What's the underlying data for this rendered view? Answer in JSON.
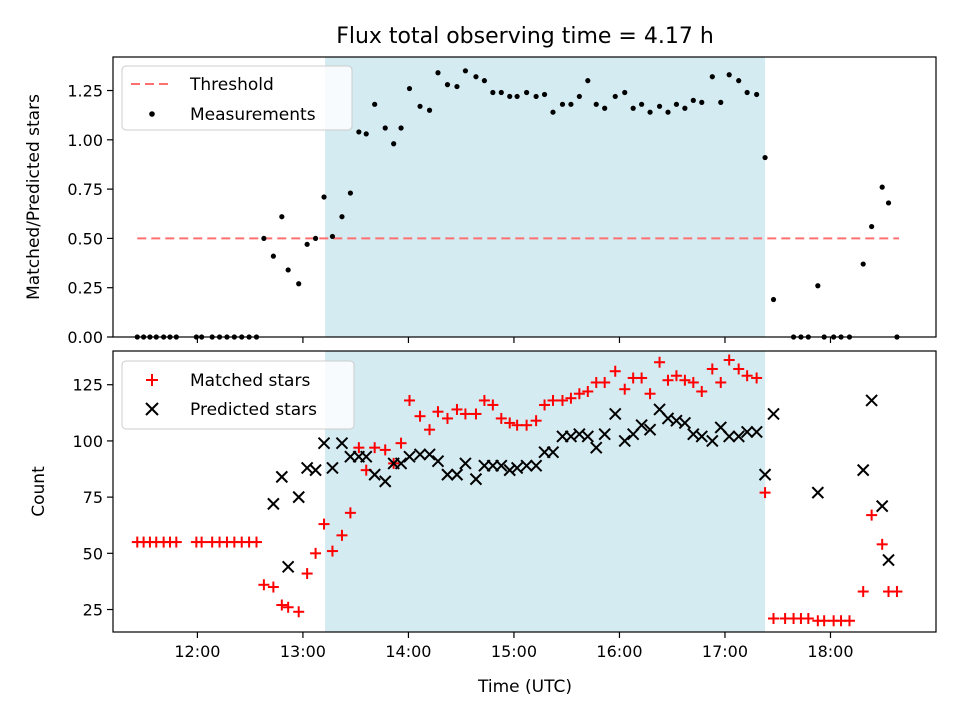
{
  "chart_data": [
    {
      "type": "scatter",
      "title": "Flux total observing time = 4.17 h",
      "xlabel": "",
      "ylabel": "Matched/Predicted stars",
      "xlim": [
        11.2,
        19.0
      ],
      "ylim": [
        0.0,
        1.42
      ],
      "yticks": [
        0.0,
        0.25,
        0.5,
        0.75,
        1.0,
        1.25
      ],
      "ytick_labels": [
        "0.00",
        "0.25",
        "0.50",
        "0.75",
        "1.00",
        "1.25"
      ],
      "xticks": [
        12,
        13,
        14,
        15,
        16,
        17,
        18
      ],
      "show_xtick_labels": false,
      "shaded_interval": {
        "x_start": 13.21,
        "x_end": 17.38,
        "color": "#add8e6"
      },
      "legend_position": "upper left",
      "series": [
        {
          "name": "Threshold",
          "style": "dashed-line",
          "color": "#ff7070",
          "x": [
            11.43,
            18.65
          ],
          "y": [
            0.5,
            0.5
          ]
        },
        {
          "name": "Measurements",
          "style": "dot",
          "color": "#000000",
          "x": [
            11.43,
            11.49,
            11.55,
            11.61,
            11.68,
            11.74,
            11.8,
            11.99,
            12.04,
            12.14,
            12.21,
            12.28,
            12.35,
            12.42,
            12.49,
            12.56,
            12.63,
            12.72,
            12.8,
            12.86,
            12.96,
            13.04,
            13.12,
            13.2,
            13.28,
            13.37,
            13.45,
            13.53,
            13.6,
            13.68,
            13.78,
            13.86,
            13.93,
            14.01,
            14.11,
            14.2,
            14.28,
            14.37,
            14.46,
            14.54,
            14.64,
            14.72,
            14.8,
            14.88,
            14.96,
            15.03,
            15.12,
            15.21,
            15.29,
            15.37,
            15.46,
            15.54,
            15.62,
            15.7,
            15.78,
            15.86,
            15.96,
            16.05,
            16.13,
            16.21,
            16.29,
            16.38,
            16.46,
            16.54,
            16.62,
            16.7,
            16.78,
            16.88,
            16.96,
            17.04,
            17.13,
            17.21,
            17.3,
            17.38,
            17.46,
            17.65,
            17.72,
            17.79,
            17.88,
            17.94,
            18.03,
            18.1,
            18.18,
            18.31,
            18.39,
            18.49,
            18.55,
            18.63
          ],
          "y": [
            0,
            0,
            0,
            0,
            0,
            0,
            0,
            0,
            0,
            0,
            0,
            0,
            0,
            0,
            0,
            0,
            0.5,
            0.41,
            0.61,
            0.34,
            0.27,
            0.47,
            0.5,
            0.71,
            0.51,
            0.61,
            0.73,
            1.04,
            1.03,
            1.18,
            1.06,
            0.98,
            1.06,
            1.26,
            1.17,
            1.15,
            1.34,
            1.28,
            1.27,
            1.35,
            1.32,
            1.3,
            1.24,
            1.24,
            1.22,
            1.22,
            1.24,
            1.22,
            1.23,
            1.14,
            1.18,
            1.18,
            1.22,
            1.3,
            1.18,
            1.16,
            1.22,
            1.24,
            1.16,
            1.18,
            1.14,
            1.17,
            1.14,
            1.18,
            1.16,
            1.2,
            1.19,
            1.32,
            1.19,
            1.33,
            1.3,
            1.24,
            1.23,
            0.91,
            0.19,
            0,
            0,
            0,
            0.26,
            0,
            0,
            0,
            0,
            0.37,
            0.56,
            0.76,
            0.68,
            0
          ]
        }
      ]
    },
    {
      "type": "scatter",
      "title": "",
      "xlabel": "Time (UTC)",
      "ylabel": "Count",
      "xlim": [
        11.2,
        19.0
      ],
      "ylim": [
        15,
        140
      ],
      "yticks": [
        25,
        50,
        75,
        100,
        125
      ],
      "ytick_labels": [
        "25",
        "50",
        "75",
        "100",
        "125"
      ],
      "xticks": [
        12,
        13,
        14,
        15,
        16,
        17,
        18
      ],
      "xtick_labels": [
        "12:00",
        "13:00",
        "14:00",
        "15:00",
        "16:00",
        "17:00",
        "18:00"
      ],
      "show_xtick_labels": true,
      "shaded_interval": {
        "x_start": 13.21,
        "x_end": 17.38,
        "color": "#add8e6"
      },
      "legend_position": "upper left",
      "series": [
        {
          "name": "Matched stars",
          "marker": "plus",
          "color": "#ff0000",
          "x": [
            11.43,
            11.49,
            11.55,
            11.61,
            11.68,
            11.74,
            11.8,
            11.99,
            12.04,
            12.14,
            12.21,
            12.28,
            12.35,
            12.42,
            12.49,
            12.56,
            12.63,
            12.72,
            12.8,
            12.86,
            12.96,
            13.04,
            13.12,
            13.2,
            13.28,
            13.37,
            13.45,
            13.53,
            13.6,
            13.68,
            13.78,
            13.86,
            13.93,
            14.01,
            14.11,
            14.2,
            14.28,
            14.37,
            14.46,
            14.54,
            14.64,
            14.72,
            14.8,
            14.88,
            14.96,
            15.03,
            15.12,
            15.21,
            15.29,
            15.37,
            15.46,
            15.54,
            15.62,
            15.7,
            15.78,
            15.86,
            15.96,
            16.05,
            16.13,
            16.21,
            16.29,
            16.38,
            16.46,
            16.54,
            16.62,
            16.7,
            16.78,
            16.88,
            16.96,
            17.04,
            17.13,
            17.21,
            17.3,
            17.38,
            17.46,
            17.57,
            17.65,
            17.72,
            17.79,
            17.88,
            17.94,
            18.03,
            18.1,
            18.18,
            18.31,
            18.39,
            18.49,
            18.55,
            18.63
          ],
          "y": [
            55,
            55,
            55,
            55,
            55,
            55,
            55,
            55,
            55,
            55,
            55,
            55,
            55,
            55,
            55,
            55,
            36,
            35,
            27,
            26,
            24,
            41,
            50,
            63,
            51,
            58,
            68,
            97,
            87,
            97,
            96,
            90,
            99,
            118,
            111,
            105,
            113,
            110,
            114,
            112,
            112,
            118,
            116,
            110,
            108,
            107,
            107,
            109,
            116,
            118,
            118,
            119,
            121,
            122,
            126,
            126,
            131,
            123,
            128,
            128,
            121,
            135,
            127,
            129,
            127,
            126,
            122,
            132,
            126,
            136,
            132,
            129,
            128,
            77,
            21,
            21,
            21,
            21,
            21,
            20,
            20,
            20,
            20,
            20,
            33,
            67,
            54,
            33,
            33
          ]
        },
        {
          "name": "Predicted stars",
          "marker": "x",
          "color": "#000000",
          "x": [
            12.72,
            12.8,
            12.86,
            12.96,
            13.04,
            13.12,
            13.2,
            13.28,
            13.37,
            13.45,
            13.53,
            13.6,
            13.68,
            13.78,
            13.86,
            13.93,
            14.01,
            14.11,
            14.2,
            14.28,
            14.37,
            14.46,
            14.54,
            14.64,
            14.72,
            14.8,
            14.88,
            14.96,
            15.03,
            15.12,
            15.21,
            15.29,
            15.37,
            15.46,
            15.54,
            15.62,
            15.7,
            15.78,
            15.86,
            15.96,
            16.05,
            16.13,
            16.21,
            16.29,
            16.38,
            16.46,
            16.54,
            16.62,
            16.7,
            16.78,
            16.88,
            16.96,
            17.04,
            17.13,
            17.21,
            17.3,
            17.38,
            17.46,
            17.88,
            18.31,
            18.39,
            18.49,
            18.55
          ],
          "y": [
            72,
            84,
            44,
            75,
            88,
            87,
            99,
            88,
            99,
            93,
            93,
            93,
            85,
            82,
            90,
            90,
            93,
            94,
            94,
            91,
            85,
            85,
            90,
            83,
            89,
            89,
            89,
            87,
            88,
            89,
            89,
            95,
            95,
            102,
            102,
            103,
            102,
            97,
            103,
            112,
            100,
            103,
            107,
            105,
            114,
            110,
            109,
            108,
            103,
            102,
            100,
            106,
            102,
            102,
            104,
            104,
            85,
            112,
            77,
            87,
            118,
            71,
            47
          ]
        }
      ]
    }
  ]
}
